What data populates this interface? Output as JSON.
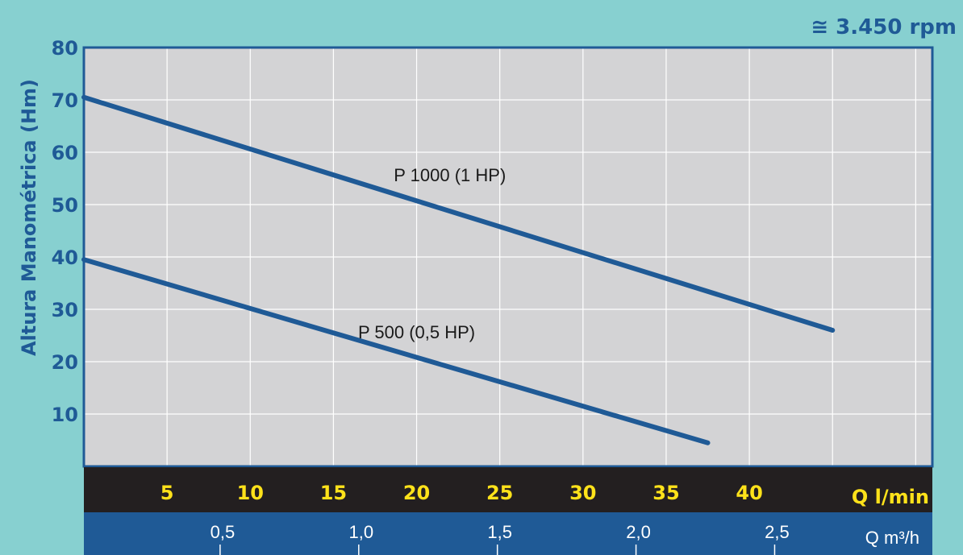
{
  "header": {
    "speed_label": "≅ 3.450 rpm"
  },
  "chart_data": {
    "type": "line",
    "title": "",
    "ylabel": "Altura Manométrica (Hm)",
    "xlabel": "Q l/min",
    "xlabel_secondary": "Q m³/h",
    "xlim": [
      0,
      51
    ],
    "ylim": [
      0,
      80
    ],
    "x_ticks": [
      5,
      10,
      15,
      20,
      25,
      30,
      35,
      40
    ],
    "x_ticks_secondary": [
      "0,5",
      "1,0",
      "1,5",
      "2,0",
      "2,5"
    ],
    "x_ticks_secondary_values": [
      0.5,
      1.0,
      1.5,
      2.0,
      2.5
    ],
    "y_ticks": [
      10,
      20,
      30,
      40,
      50,
      60,
      70,
      80
    ],
    "grid": true,
    "series": [
      {
        "name": "P 1000 (1 HP)",
        "x": [
          0,
          45
        ],
        "y": [
          70.5,
          26
        ],
        "color": "#1f5a96"
      },
      {
        "name": "P 500 (0,5 HP)",
        "x": [
          0,
          37.5
        ],
        "y": [
          39.5,
          4.5
        ],
        "color": "#1f5a96"
      }
    ],
    "colors": {
      "plot_bg": "#d3d3d5",
      "page_bg": "#87d0d0",
      "axis": "#1f5a96",
      "band_dark": "#231f20",
      "band_blue": "#1f5a96",
      "tick_yellow": "#ffe21a"
    }
  }
}
